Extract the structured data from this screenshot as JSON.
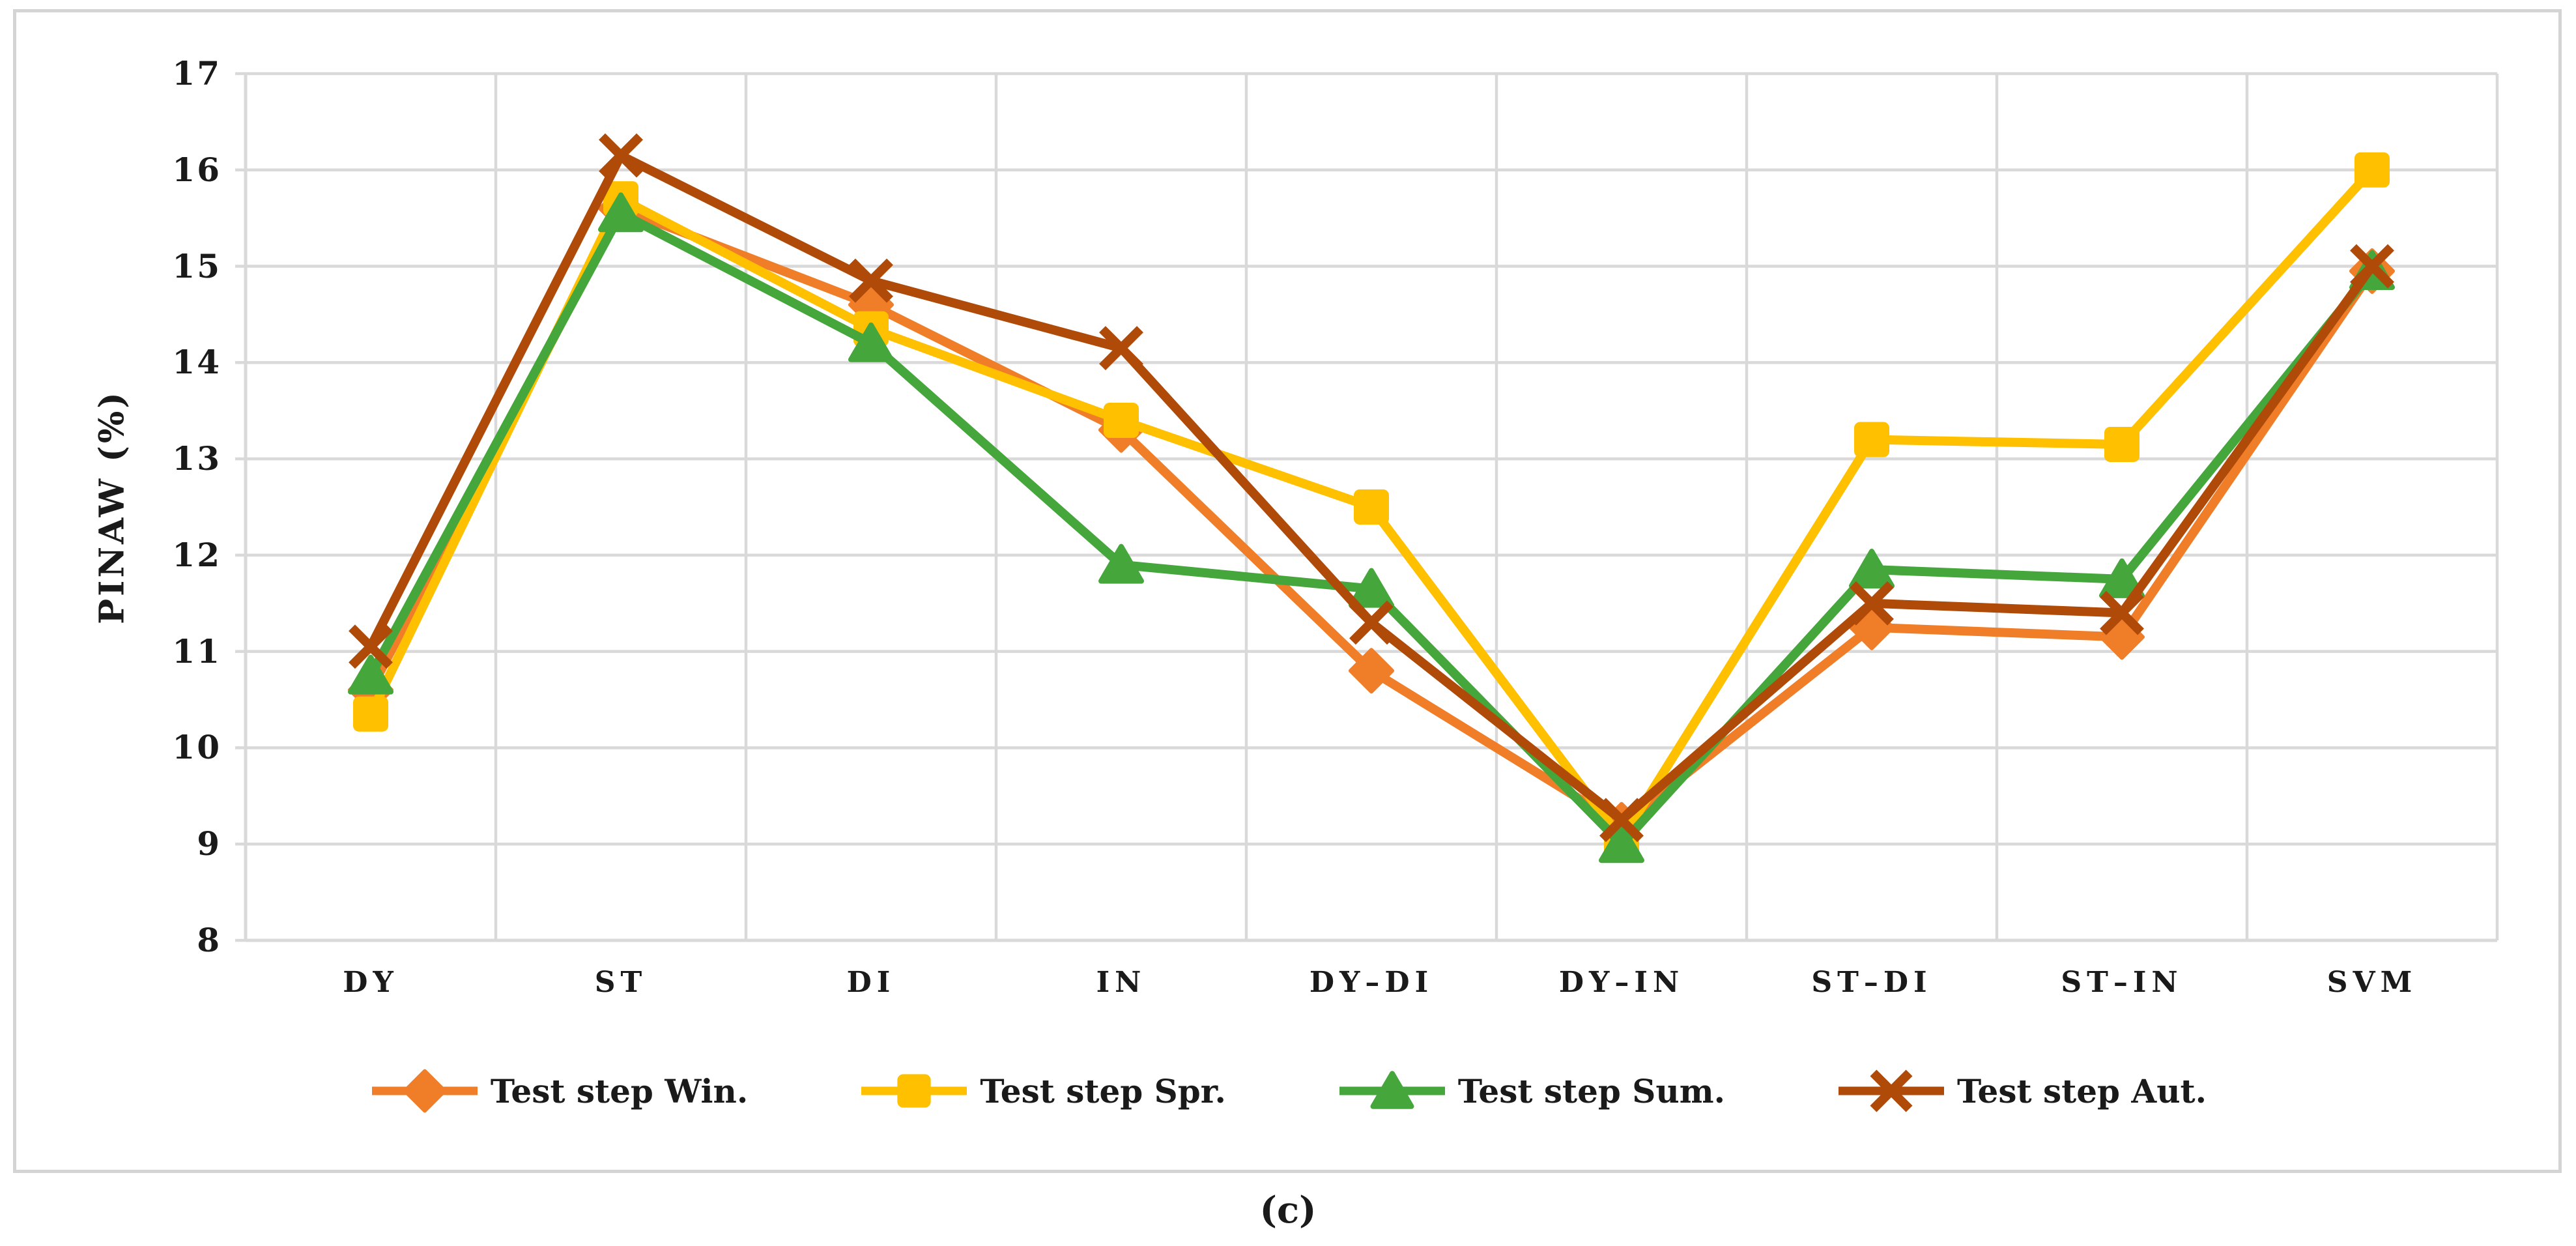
{
  "figure": {
    "caption": "(c)"
  },
  "chart_data": {
    "type": "line",
    "title": "",
    "xlabel": "",
    "ylabel": "PINAW (%)",
    "categories": [
      "DY",
      "ST",
      "DI",
      "IN",
      "DY–DI",
      "DY–IN",
      "ST–DI",
      "ST–IN",
      "SVM"
    ],
    "ylim": [
      8,
      17
    ],
    "ytick_labels": [
      "8",
      "9",
      "10",
      "11",
      "12",
      "13",
      "14",
      "15",
      "16",
      "17"
    ],
    "grid": "both",
    "legend_position": "bottom",
    "series": [
      {
        "name": "Test step Win.",
        "marker": "diamond",
        "color": "#F07D28",
        "values": [
          10.6,
          15.6,
          14.6,
          13.3,
          10.8,
          9.2,
          11.25,
          11.15,
          14.95
        ]
      },
      {
        "name": "Test step Spr.",
        "marker": "square",
        "color": "#FFC000",
        "values": [
          10.35,
          15.7,
          14.35,
          13.4,
          12.5,
          9.05,
          13.2,
          13.15,
          16.0
        ]
      },
      {
        "name": "Test step Sum.",
        "marker": "triangle",
        "color": "#45A63C",
        "values": [
          10.75,
          15.55,
          14.2,
          11.9,
          11.65,
          9.0,
          11.85,
          11.75,
          14.95
        ]
      },
      {
        "name": "Test step Aut.",
        "marker": "x",
        "color": "#B04A08",
        "values": [
          11.05,
          16.15,
          14.85,
          14.15,
          11.3,
          9.25,
          11.5,
          11.4,
          15.0
        ]
      }
    ],
    "colors": {
      "gridline": "#D9D9D9",
      "axis": "#D9D9D9",
      "text": "#1A1A1A",
      "frame_border": "#D4D4D4",
      "background": "#FFFFFF"
    }
  }
}
